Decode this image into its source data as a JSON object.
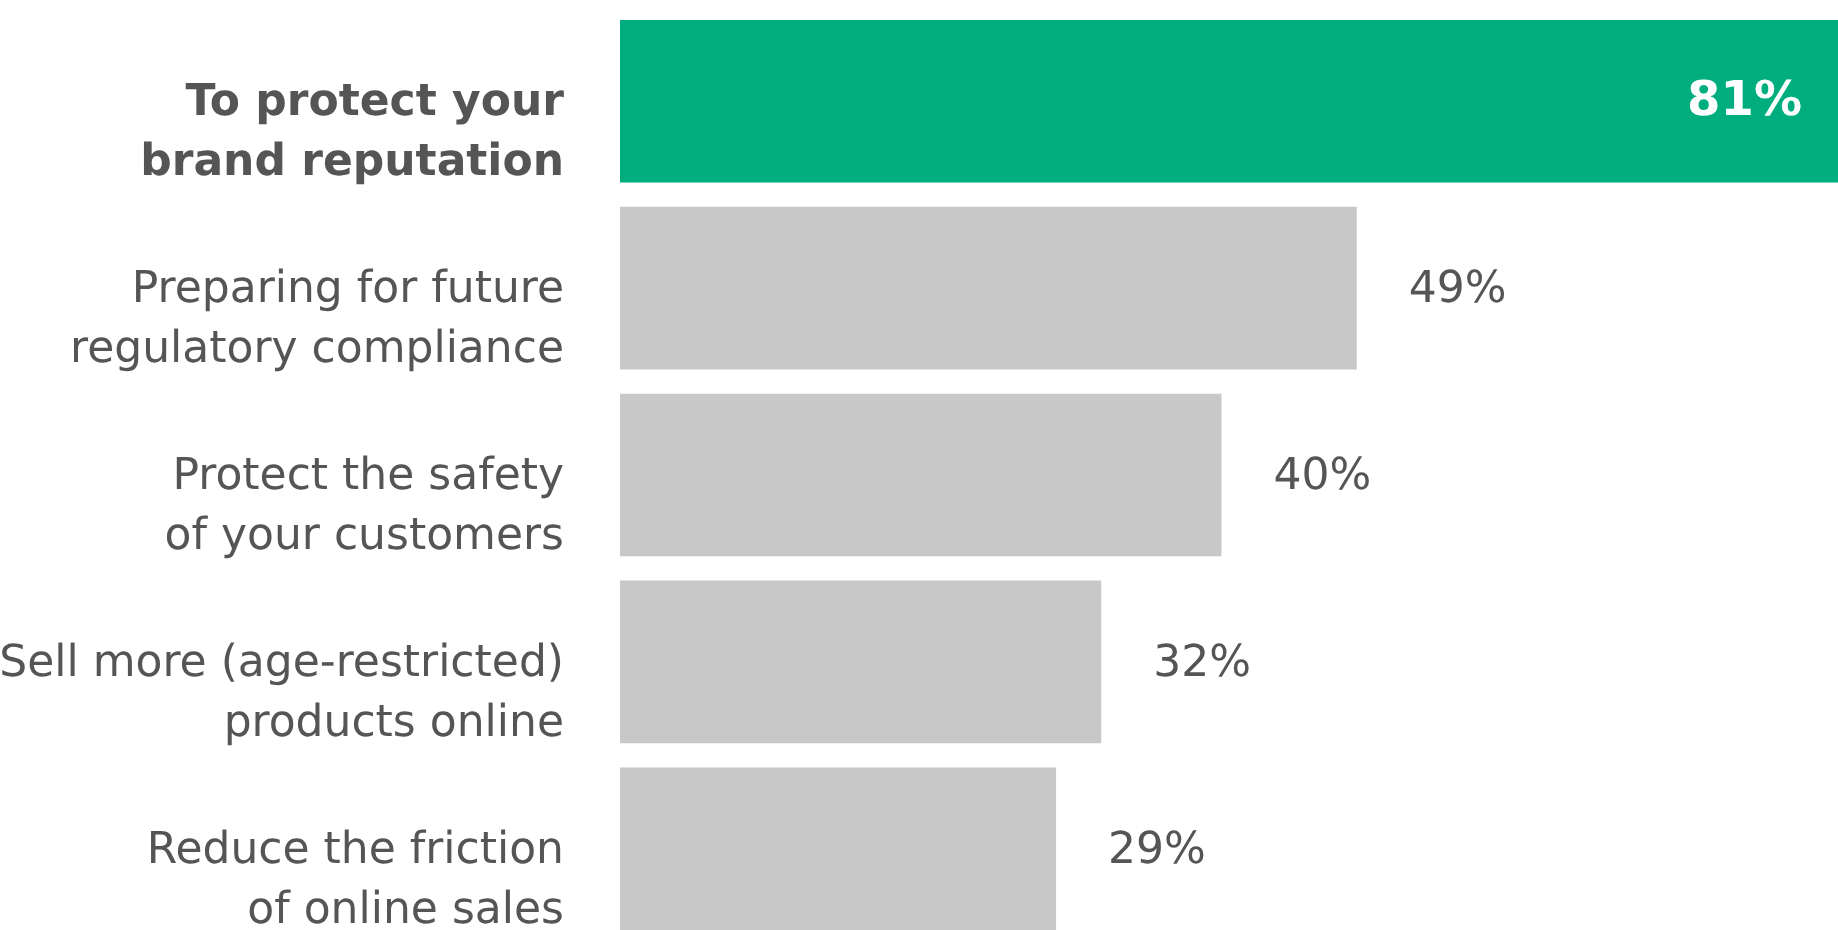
{
  "chart_data": {
    "type": "bar",
    "orientation": "horizontal",
    "categories": [
      "To protect your brand reputation",
      "Preparing for future regulatory compliance",
      "Protect the safety of your customers",
      "Sell more (age-restricted) products online",
      "Reduce the friction of online sales"
    ],
    "values": [
      81,
      49,
      40,
      32,
      29
    ],
    "colors": [
      "#00ad7f",
      "#c8c8c8",
      "#c8c8c8",
      "#c8c8c8",
      "#c8c8c8"
    ],
    "data_labels": true,
    "value_labels": [
      "81%",
      "49%",
      "40%",
      "32%",
      "29%"
    ],
    "tick_labels": "y"
  }
}
